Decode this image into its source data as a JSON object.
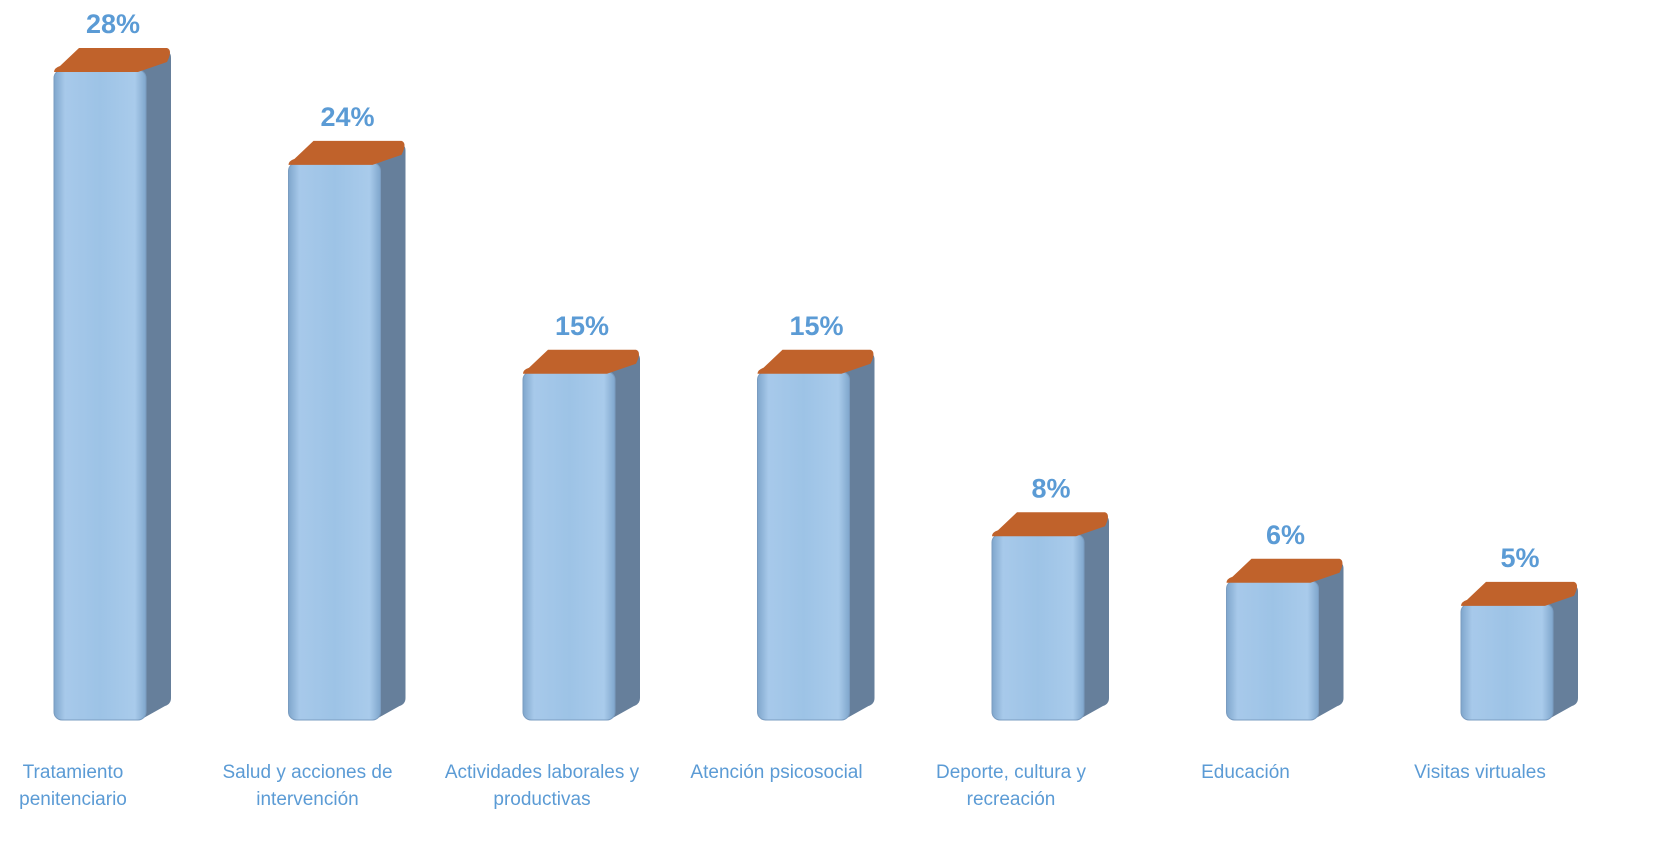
{
  "chart_data": {
    "type": "bar3d",
    "categories": [
      "Tratamiento penitenciario",
      "Salud y acciones de intervención",
      "Actividades laborales y productivas",
      "Atención psicosocial",
      "Deporte, cultura y recreación",
      "Educación",
      "Visitas virtuales"
    ],
    "values": [
      28,
      24,
      15,
      15,
      8,
      6,
      5
    ],
    "value_labels": [
      "28%",
      "24%",
      "15%",
      "15%",
      "8%",
      "6%",
      "5%"
    ],
    "color": "#9dc3e6",
    "top_color": "#c0622b",
    "side_color": "#667f9b",
    "label_color": "#5b9bd5",
    "ylim": [
      0,
      28
    ]
  }
}
